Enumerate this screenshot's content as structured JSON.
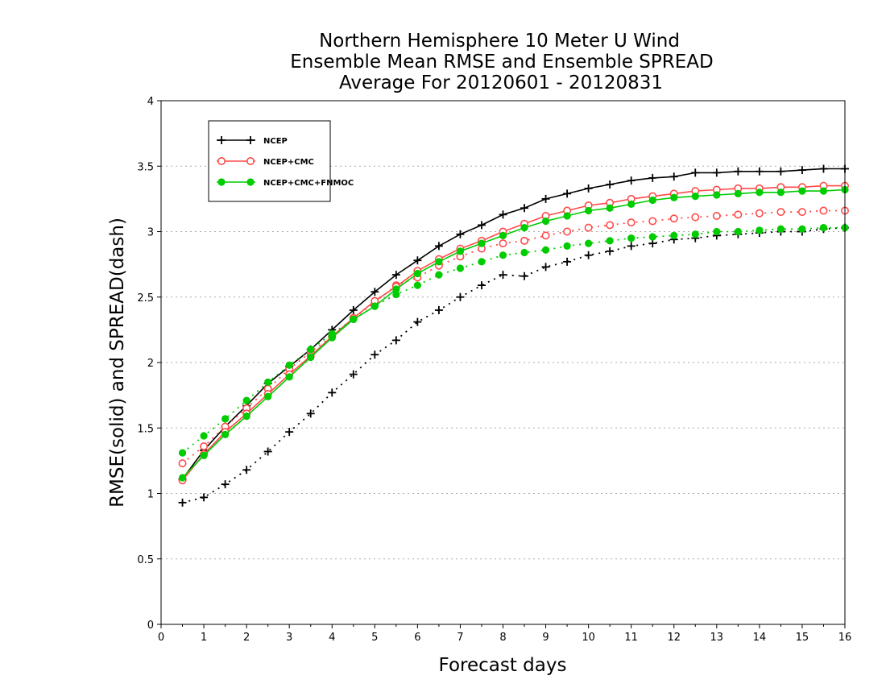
{
  "chart_data": {
    "type": "line",
    "title_lines": [
      "Northern Hemisphere 10 Meter U Wind",
      "Ensemble Mean RMSE and Ensemble SPREAD",
      "Average For 20120601 - 20120831"
    ],
    "xlabel": "Forecast days",
    "ylabel": "RMSE(solid) and SPREAD(dash)",
    "xlim": [
      0,
      16
    ],
    "ylim": [
      0,
      4
    ],
    "x_ticks": [
      "0",
      "1",
      "2",
      "3",
      "4",
      "5",
      "6",
      "7",
      "8",
      "9",
      "10",
      "11",
      "12",
      "13",
      "14",
      "15",
      "16"
    ],
    "y_ticks": [
      "0",
      "0.5",
      "1",
      "1.5",
      "2",
      "2.5",
      "3",
      "3.5",
      "4"
    ],
    "grid": "horizontal dotted",
    "legend_position": "top-left",
    "x": [
      0.5,
      1,
      1.5,
      2,
      2.5,
      3,
      3.5,
      4,
      4.5,
      5,
      5.5,
      6,
      6.5,
      7,
      7.5,
      8,
      8.5,
      9,
      9.5,
      10,
      10.5,
      11,
      11.5,
      12,
      12.5,
      13,
      13.5,
      14,
      14.5,
      15,
      15.5,
      16
    ],
    "series": [
      {
        "name": "NCEP",
        "color": "#000000",
        "marker": "plus",
        "rmse": [
          1.11,
          1.33,
          1.51,
          1.67,
          1.84,
          1.97,
          2.1,
          2.25,
          2.4,
          2.54,
          2.67,
          2.78,
          2.89,
          2.98,
          3.05,
          3.13,
          3.18,
          3.25,
          3.29,
          3.33,
          3.36,
          3.39,
          3.41,
          3.42,
          3.45,
          3.45,
          3.46,
          3.46,
          3.46,
          3.47,
          3.48,
          3.48
        ],
        "spread": [
          0.93,
          0.97,
          1.07,
          1.18,
          1.32,
          1.47,
          1.61,
          1.77,
          1.91,
          2.06,
          2.17,
          2.31,
          2.4,
          2.5,
          2.59,
          2.67,
          2.66,
          2.73,
          2.77,
          2.82,
          2.85,
          2.89,
          2.91,
          2.94,
          2.95,
          2.97,
          2.98,
          2.99,
          3.0,
          3.0,
          3.02,
          3.03
        ]
      },
      {
        "name": "NCEP+CMC",
        "color": "#ff4a4a",
        "marker": "open-circle",
        "rmse": [
          1.1,
          1.3,
          1.47,
          1.61,
          1.76,
          1.91,
          2.05,
          2.2,
          2.34,
          2.47,
          2.58,
          2.7,
          2.79,
          2.87,
          2.93,
          3.0,
          3.06,
          3.12,
          3.16,
          3.2,
          3.22,
          3.25,
          3.27,
          3.29,
          3.31,
          3.32,
          3.33,
          3.33,
          3.34,
          3.34,
          3.35,
          3.35
        ],
        "spread": [
          1.23,
          1.36,
          1.51,
          1.65,
          1.8,
          1.95,
          2.08,
          2.2,
          2.34,
          2.46,
          2.59,
          2.65,
          2.74,
          2.81,
          2.87,
          2.91,
          2.93,
          2.97,
          3.0,
          3.03,
          3.05,
          3.07,
          3.08,
          3.1,
          3.11,
          3.12,
          3.13,
          3.14,
          3.15,
          3.15,
          3.16,
          3.16
        ]
      },
      {
        "name": "NCEP+CMC+FNMOC",
        "color": "#00cc00",
        "marker": "filled-circle",
        "rmse": [
          1.12,
          1.29,
          1.45,
          1.59,
          1.74,
          1.89,
          2.04,
          2.19,
          2.33,
          2.43,
          2.56,
          2.68,
          2.77,
          2.85,
          2.91,
          2.97,
          3.03,
          3.08,
          3.12,
          3.16,
          3.18,
          3.21,
          3.24,
          3.26,
          3.27,
          3.28,
          3.29,
          3.3,
          3.3,
          3.31,
          3.31,
          3.32
        ],
        "spread": [
          1.31,
          1.44,
          1.57,
          1.71,
          1.85,
          1.98,
          2.1,
          2.22,
          2.33,
          2.43,
          2.52,
          2.59,
          2.67,
          2.72,
          2.77,
          2.82,
          2.84,
          2.86,
          2.89,
          2.91,
          2.93,
          2.95,
          2.96,
          2.97,
          2.98,
          3.0,
          3.0,
          3.01,
          3.02,
          3.02,
          3.03,
          3.03
        ]
      }
    ]
  }
}
